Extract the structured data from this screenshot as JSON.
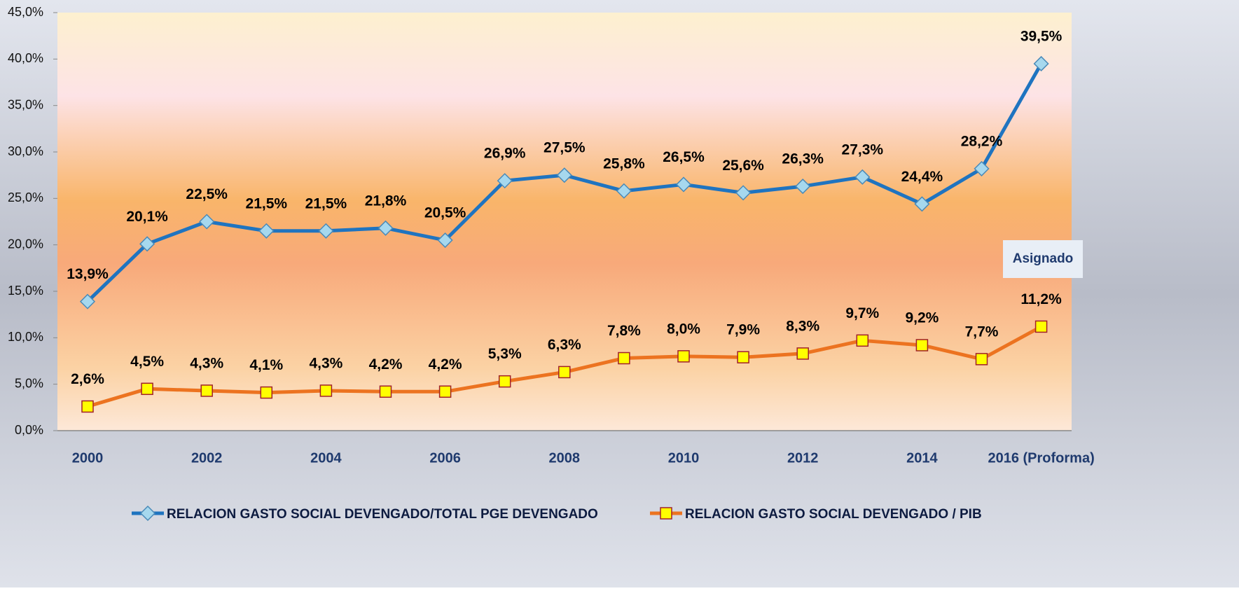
{
  "chart_data": {
    "type": "line",
    "categories": [
      "2000",
      null,
      "2002",
      null,
      "2004",
      null,
      "2006",
      null,
      "2008",
      null,
      "2010",
      null,
      "2012",
      null,
      "2014",
      null,
      "2016 (Proforma)"
    ],
    "series": [
      {
        "name": "RELACION GASTO  SOCIAL DEVENGADO/TOTAL  PGE  DEVENGADO",
        "color": "#1f74c0",
        "marker": "diamond",
        "marker_color": "#a6d8ee",
        "values": [
          13.9,
          20.1,
          22.5,
          21.5,
          21.5,
          21.8,
          20.5,
          26.9,
          27.5,
          25.8,
          26.5,
          25.6,
          26.3,
          27.3,
          24.4,
          28.2,
          39.5
        ],
        "value_labels": [
          "13,9%",
          "20,1%",
          "22,5%",
          "21,5%",
          "21,5%",
          "21,8%",
          "20,5%",
          "26,9%",
          "27,5%",
          "25,8%",
          "26,5%",
          "25,6%",
          "26,3%",
          "27,3%",
          "24,4%",
          "28,2%",
          "39,5%"
        ]
      },
      {
        "name": "RELACION GASTO  SOCIAL DEVENGADO  / PIB",
        "color": "#ec7320",
        "marker": "square",
        "marker_color": "#ffff00",
        "values": [
          2.6,
          4.5,
          4.3,
          4.1,
          4.3,
          4.2,
          4.2,
          5.3,
          6.3,
          7.8,
          8.0,
          7.9,
          8.3,
          9.7,
          9.2,
          7.7,
          11.2
        ],
        "value_labels": [
          "2,6%",
          "4,5%",
          "4,3%",
          "4,1%",
          "4,3%",
          "4,2%",
          "4,2%",
          "5,3%",
          "6,3%",
          "7,8%",
          "8,0%",
          "7,9%",
          "8,3%",
          "9,7%",
          "9,2%",
          "7,7%",
          "11,2%"
        ]
      }
    ],
    "ylim": [
      0,
      45
    ],
    "yticks": [
      {
        "value": 0,
        "label": "0,0%"
      },
      {
        "value": 5,
        "label": "5,0%"
      },
      {
        "value": 10,
        "label": "10,0%"
      },
      {
        "value": 15,
        "label": "15,0%"
      },
      {
        "value": 20,
        "label": "20,0%"
      },
      {
        "value": 25,
        "label": "25,0%"
      },
      {
        "value": 30,
        "label": "30,0%"
      },
      {
        "value": 35,
        "label": "35,0%"
      },
      {
        "value": 40,
        "label": "40,0%"
      },
      {
        "value": 45,
        "label": "45,0%"
      }
    ],
    "annotation": "Asignado",
    "legend": "bottom"
  }
}
